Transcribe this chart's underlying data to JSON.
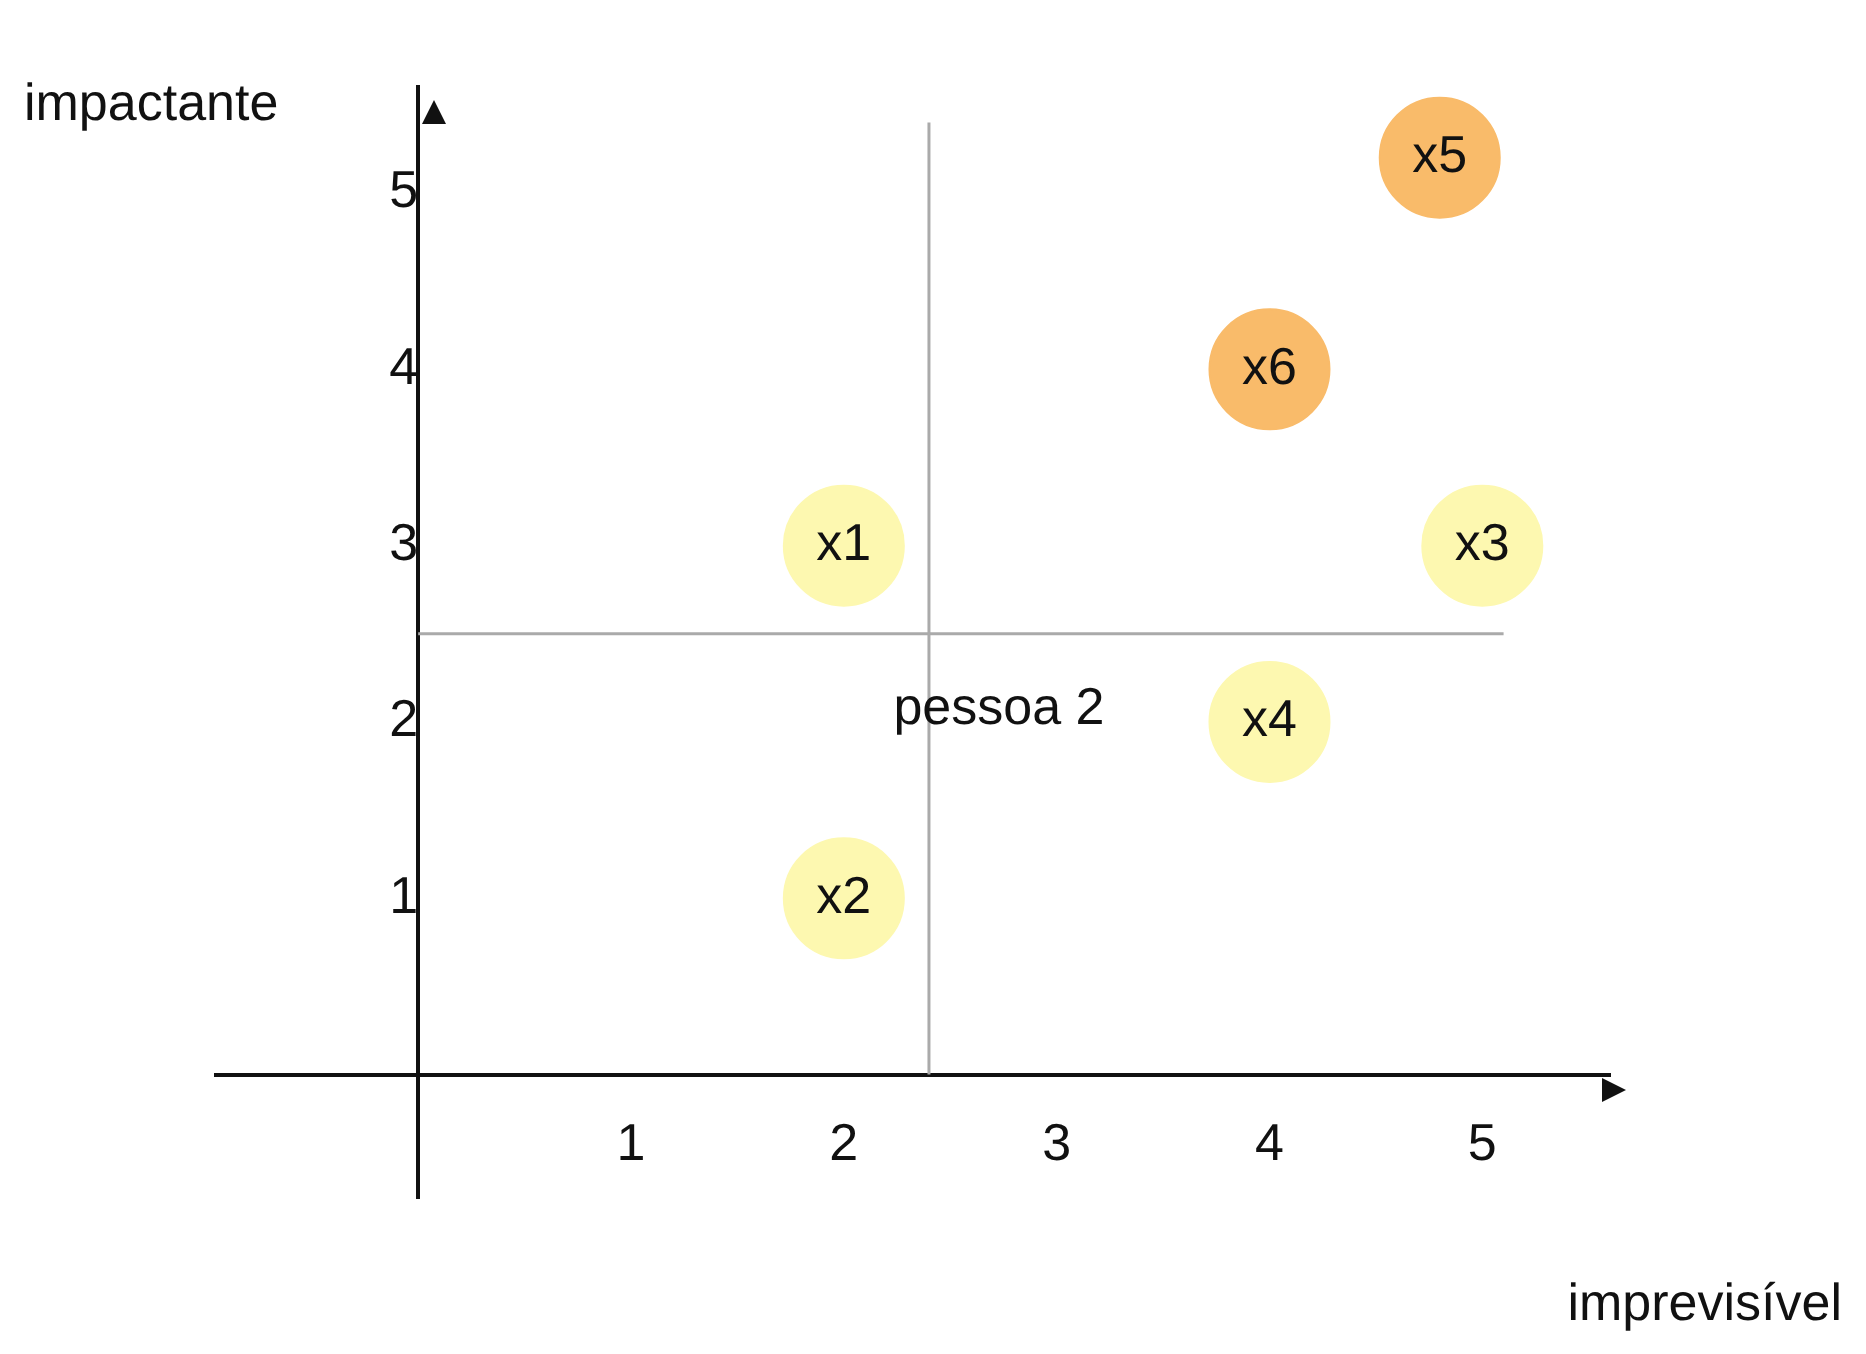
{
  "chart_data": {
    "type": "scatter",
    "xlabel": "imprevisível",
    "ylabel": "impactante",
    "x": [
      2,
      2,
      5,
      4,
      4.8,
      4
    ],
    "values": [
      3,
      1,
      3,
      2,
      5.2,
      4
    ],
    "colors": [
      "#fdf8b0",
      "#fdf8b0",
      "#fdf8b0",
      "#fdf8b0",
      "#f9bb6a",
      "#f9bb6a"
    ],
    "marker": "circle",
    "xlim": [
      -0.95,
      5.6
    ],
    "ylim": [
      -0.7,
      5.6
    ],
    "xticks": [
      1,
      2,
      3,
      4,
      5
    ],
    "yticks": [
      1,
      2,
      3,
      4,
      5
    ],
    "grid": false,
    "legend": false,
    "ref_lines": [
      {
        "axis": "x",
        "value": 2.4,
        "color": "#aaaaaa"
      },
      {
        "axis": "y",
        "value": 2.5,
        "color": "#aaaaaa"
      }
    ],
    "annotations": [
      {
        "text": "x1",
        "x": 2,
        "y": 3
      },
      {
        "text": "x2",
        "x": 2,
        "y": 1
      },
      {
        "text": "x3",
        "x": 5,
        "y": 3
      },
      {
        "text": "x4",
        "x": 4,
        "y": 2
      },
      {
        "text": "x5",
        "x": 4.8,
        "y": 5.2
      },
      {
        "text": "x6",
        "x": 4,
        "y": 4
      },
      "pessoa 2"
    ]
  }
}
